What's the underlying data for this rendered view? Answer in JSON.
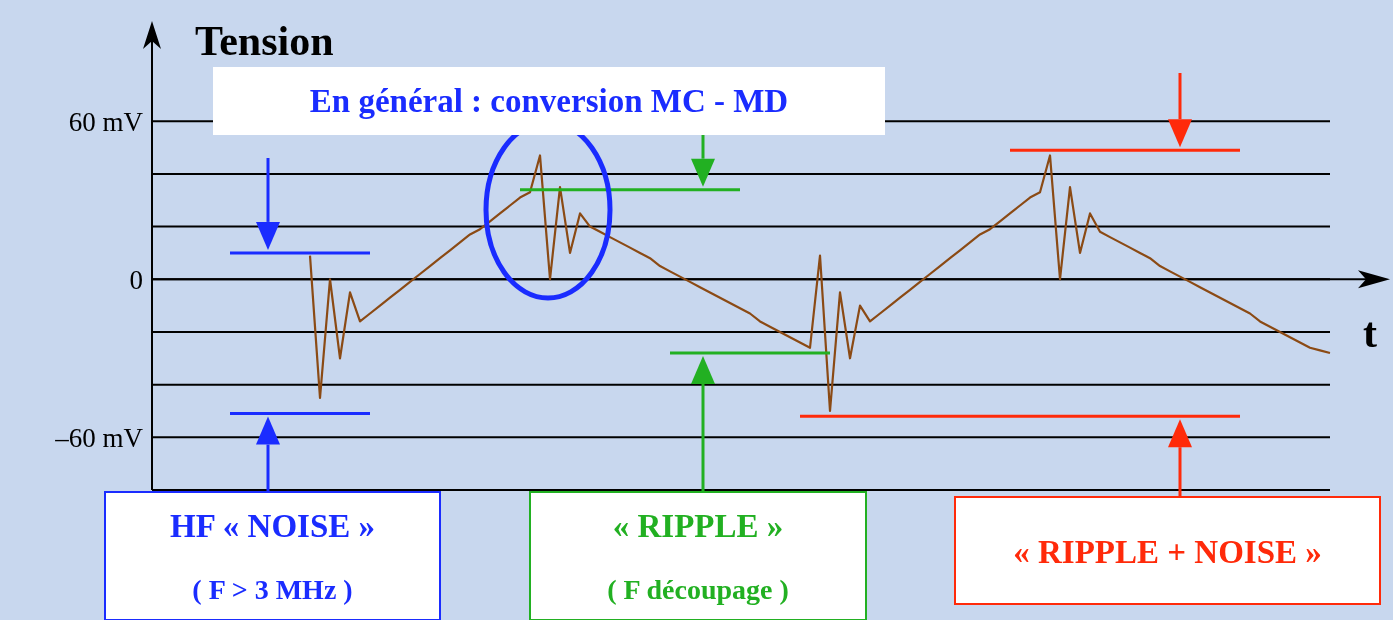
{
  "chart_data": {
    "type": "line",
    "ylabel": "Tension",
    "xlabel": "t",
    "annotations": [
      "En général : conversion MC - MD",
      "HF « NOISE »",
      "( F > 3 MHz )",
      "« RIPPLE »",
      "( F découpage )",
      "« RIPPLE + NOISE »"
    ],
    "categories": [
      null,
      null,
      null,
      null,
      null,
      null,
      null,
      null,
      null,
      null,
      null,
      null,
      null,
      null,
      null,
      null,
      null,
      null,
      null,
      null,
      null,
      null,
      null,
      null,
      null,
      null,
      null,
      null,
      null,
      null,
      null,
      null,
      null,
      null,
      null,
      null,
      null,
      null,
      null,
      null,
      null,
      null,
      null,
      null,
      null,
      null,
      null,
      null,
      null,
      null,
      null,
      null,
      null,
      null,
      null,
      null,
      null,
      null,
      null,
      null,
      null,
      null,
      null,
      null,
      null,
      null,
      null,
      null,
      null,
      null,
      null,
      null,
      null,
      null,
      null,
      null,
      null,
      null,
      null,
      null,
      null,
      null,
      null,
      null,
      null,
      null,
      null,
      null,
      null,
      null,
      null,
      null,
      null,
      null,
      null,
      null,
      null,
      null,
      null,
      null,
      null,
      null,
      null,
      null,
      null,
      null,
      null,
      null,
      null,
      null,
      null,
      null,
      null,
      null,
      null,
      null,
      null,
      null,
      null,
      null,
      null,
      null,
      null,
      null
    ],
    "series": [
      {
        "color": "#8b4a14",
        "values": [
          null,
          null,
          null,
          null,
          null,
          null,
          null,
          null,
          null,
          null,
          null,
          null,
          null,
          null,
          null,
          null,
          9,
          -45,
          0,
          -30,
          -5,
          -16,
          -13,
          -10,
          -7,
          -4,
          -1,
          2,
          5,
          8,
          11,
          14,
          17,
          19,
          22,
          25,
          28,
          31,
          33,
          47,
          0,
          35,
          10,
          25,
          20,
          18,
          16,
          14,
          12,
          10,
          8,
          5,
          3,
          1,
          -1,
          -3,
          -5,
          -7,
          -9,
          -11,
          -13,
          -16,
          -18,
          -20,
          -22,
          -24,
          -26,
          9,
          -50,
          -5,
          -30,
          -10,
          -16,
          -13,
          -10,
          -7,
          -4,
          -1,
          2,
          5,
          8,
          11,
          14,
          17,
          19,
          22,
          25,
          28,
          31,
          33,
          47,
          0,
          35,
          10,
          25,
          18,
          16,
          14,
          12,
          10,
          8,
          5,
          3,
          1,
          -1,
          -3,
          -5,
          -7,
          -9,
          -11,
          -13,
          -16,
          -18,
          -20,
          -22,
          -24,
          -26,
          -27,
          -28,
          null,
          null,
          null,
          null,
          null
        ]
      },
      {
        "color": "#1a2cff",
        "values": [
          null,
          null,
          null,
          null,
          null,
          null,
          null,
          null,
          10,
          10,
          10,
          10,
          10,
          10,
          10,
          10,
          10,
          10,
          10,
          10,
          10,
          10,
          10,
          null,
          null,
          null,
          null,
          null,
          null,
          null,
          null,
          null,
          null,
          null,
          null,
          null,
          null,
          null,
          null,
          null,
          null,
          null,
          null,
          null,
          null,
          null,
          null,
          null,
          null,
          null,
          null,
          null,
          null,
          null,
          null,
          null,
          null,
          null,
          null,
          null,
          null,
          null,
          null,
          null,
          null,
          null,
          null,
          null,
          null,
          null,
          null,
          null,
          null,
          null,
          null,
          null,
          null,
          null,
          null,
          null,
          null,
          null,
          null,
          null,
          null,
          null,
          null,
          null,
          null,
          null,
          null,
          null,
          null,
          null,
          null,
          null,
          null,
          null,
          null,
          null,
          null,
          null,
          null,
          null,
          null,
          null,
          null,
          null,
          null,
          null,
          null,
          null,
          null,
          null,
          null,
          null,
          null,
          null,
          null,
          null,
          null,
          null,
          null,
          null
        ]
      },
      {
        "color": "#1a2cff",
        "values": [
          null,
          null,
          null,
          null,
          null,
          null,
          null,
          null,
          -51,
          -51,
          -51,
          -51,
          -51,
          -51,
          -51,
          -51,
          -51,
          -51,
          -51,
          -51,
          -51,
          -51,
          -51,
          null,
          null,
          null,
          null,
          null,
          null,
          null,
          null,
          null,
          null,
          null,
          null,
          null,
          null,
          null,
          null,
          null,
          null,
          null,
          null,
          null,
          null,
          null,
          null,
          null,
          null,
          null,
          null,
          null,
          null,
          null,
          null,
          null,
          null,
          null,
          null,
          null,
          null,
          null,
          null,
          null,
          null,
          null,
          null,
          null,
          null,
          null,
          null,
          null,
          null,
          null,
          null,
          null,
          null,
          null,
          null,
          null,
          null,
          null,
          null,
          null,
          null,
          null,
          null,
          null,
          null,
          null,
          null,
          null,
          null,
          null,
          null,
          null,
          null,
          null,
          null,
          null,
          null,
          null,
          null,
          null,
          null,
          null,
          null,
          null,
          null,
          null,
          null,
          null,
          null,
          null,
          null,
          null,
          null,
          null,
          null,
          null,
          null,
          null,
          null,
          null
        ]
      },
      {
        "color": "#22b022",
        "values": [
          null,
          null,
          null,
          null,
          null,
          null,
          null,
          null,
          null,
          null,
          null,
          null,
          null,
          null,
          null,
          null,
          null,
          null,
          null,
          null,
          null,
          null,
          null,
          null,
          null,
          null,
          null,
          null,
          null,
          null,
          null,
          null,
          null,
          null,
          null,
          null,
          null,
          34,
          34,
          34,
          34,
          34,
          34,
          34,
          34,
          34,
          34,
          34,
          34,
          34,
          34,
          34,
          34,
          34,
          34,
          34,
          34,
          34,
          34,
          34,
          null,
          null,
          null,
          null,
          null,
          null,
          null,
          null,
          null,
          null,
          null,
          null,
          null,
          null,
          null,
          null,
          null,
          null,
          null,
          null,
          null,
          null,
          null,
          null,
          null,
          null,
          null,
          null,
          null,
          null,
          null,
          null,
          null,
          null,
          null,
          null,
          null,
          null,
          null,
          null,
          null,
          null,
          null,
          null,
          null,
          null,
          null,
          null,
          null,
          null,
          null,
          null,
          null,
          null,
          null,
          null,
          null,
          null,
          null,
          null,
          null,
          null,
          null,
          null
        ]
      },
      {
        "color": "#22b022",
        "values": [
          null,
          null,
          null,
          null,
          null,
          null,
          null,
          null,
          null,
          null,
          null,
          null,
          null,
          null,
          null,
          null,
          null,
          null,
          null,
          null,
          null,
          null,
          null,
          null,
          null,
          null,
          null,
          null,
          null,
          null,
          null,
          null,
          null,
          null,
          null,
          null,
          null,
          null,
          null,
          null,
          null,
          null,
          null,
          null,
          null,
          null,
          null,
          null,
          null,
          null,
          null,
          null,
          -28,
          -28,
          -28,
          -28,
          -28,
          -28,
          -28,
          -28,
          -28,
          -28,
          -28,
          -28,
          -28,
          -28,
          -28,
          -28,
          -28,
          null,
          null,
          null,
          null,
          null,
          null,
          null,
          null,
          null,
          null,
          null,
          null,
          null,
          null,
          null,
          null,
          null,
          null,
          null,
          null,
          null,
          null,
          null,
          null,
          null,
          null,
          null,
          null,
          null,
          null,
          null,
          null,
          null,
          null,
          null,
          null,
          null,
          null,
          null,
          null,
          null,
          null,
          null,
          null,
          null,
          null,
          null,
          null,
          null,
          null,
          null,
          null,
          null,
          null,
          null
        ]
      },
      {
        "color": "#ff2a0a",
        "values": [
          null,
          null,
          null,
          null,
          null,
          null,
          null,
          null,
          null,
          null,
          null,
          null,
          null,
          null,
          null,
          null,
          null,
          null,
          null,
          null,
          null,
          null,
          null,
          null,
          null,
          null,
          null,
          null,
          null,
          null,
          null,
          null,
          null,
          null,
          null,
          null,
          null,
          null,
          null,
          null,
          null,
          null,
          null,
          null,
          null,
          null,
          null,
          null,
          null,
          null,
          null,
          null,
          null,
          null,
          null,
          null,
          null,
          null,
          null,
          null,
          null,
          null,
          null,
          null,
          null,
          null,
          null,
          null,
          null,
          null,
          null,
          null,
          null,
          null,
          null,
          null,
          null,
          null,
          null,
          null,
          null,
          null,
          null,
          null,
          null,
          null,
          49,
          49,
          49,
          49,
          49,
          49,
          49,
          49,
          49,
          49,
          49,
          49,
          49,
          49,
          49,
          49,
          49,
          49,
          49,
          49,
          49,
          49,
          49,
          49,
          null,
          null,
          null,
          null,
          null,
          null,
          null,
          null,
          null,
          null,
          null,
          null,
          null,
          null
        ]
      },
      {
        "color": "#ff2a0a",
        "values": [
          null,
          null,
          null,
          null,
          null,
          null,
          null,
          null,
          null,
          null,
          null,
          null,
          null,
          null,
          null,
          null,
          null,
          null,
          null,
          null,
          null,
          null,
          null,
          null,
          null,
          null,
          null,
          null,
          null,
          null,
          null,
          null,
          null,
          null,
          null,
          null,
          null,
          null,
          null,
          null,
          null,
          null,
          null,
          null,
          null,
          null,
          null,
          null,
          null,
          null,
          null,
          null,
          null,
          null,
          null,
          null,
          null,
          null,
          null,
          null,
          null,
          null,
          null,
          null,
          null,
          -52,
          -52,
          -52,
          -52,
          -52,
          -52,
          -52,
          -52,
          -52,
          -52,
          -52,
          -52,
          -52,
          -52,
          -52,
          -52,
          -52,
          -52,
          -52,
          -52,
          -52,
          -52,
          -52,
          -52,
          -52,
          -52,
          -52,
          -52,
          -52,
          -52,
          -52,
          -52,
          -52,
          -52,
          -52,
          -52,
          -52,
          -52,
          -52,
          -52,
          -52,
          -52,
          -52,
          -52,
          -52,
          null,
          null,
          null,
          null,
          null,
          null,
          null,
          null,
          null,
          null,
          null,
          null,
          null,
          null
        ]
      }
    ],
    "ylim": [
      -80,
      95
    ],
    "yticks": [
      {
        "value": -80,
        "label": null
      },
      {
        "value": -60,
        "label": "–60 mV"
      },
      {
        "value": -40,
        "label": null
      },
      {
        "value": -20,
        "label": null
      },
      0,
      {
        "value": 20,
        "label": null
      },
      {
        "value": 40,
        "label": null
      },
      {
        "value": 60,
        "label": "60 mV"
      }
    ],
    "grid": "y",
    "tick_labels": "y"
  }
}
